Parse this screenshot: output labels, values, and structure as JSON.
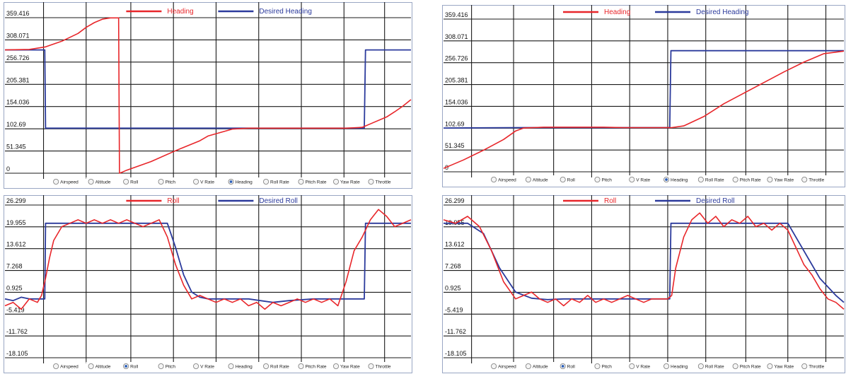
{
  "radio_options": [
    "Airspeed",
    "Altitude",
    "Roll",
    "Pitch",
    "V Rate",
    "Heading",
    "Roll Rate",
    "Pitch Rate",
    "Yaw Rate",
    "Throttle"
  ],
  "colors": {
    "actual": "#e8262a",
    "desired": "#2b3a9c",
    "grid": "#1a1a1a"
  },
  "chart_data": [
    {
      "type": "line",
      "legend_placement": "top-center",
      "grid": true,
      "selected_option": "Heading",
      "ylim": [
        0,
        359.416
      ],
      "yticks": [
        "359.416",
        "308.071",
        "256.726",
        "205.381",
        "154.036",
        "102.69",
        "51.345",
        "0"
      ],
      "xlim": [
        0,
        100
      ],
      "series": [
        {
          "name": "Heading",
          "x": [
            0,
            6,
            10,
            14,
            18,
            20,
            22,
            24,
            26,
            27,
            28,
            28.2,
            29,
            30,
            36,
            42,
            48,
            50,
            56,
            60,
            64,
            70,
            76,
            80,
            84,
            88,
            90,
            94,
            96,
            98,
            100
          ],
          "y": [
            285,
            286,
            292,
            305,
            323,
            337,
            348,
            356,
            359,
            359,
            359,
            0,
            3,
            7,
            27,
            52,
            75,
            86,
            102,
            104,
            104,
            104,
            104,
            104,
            104,
            106,
            114,
            130,
            142,
            155,
            170
          ]
        },
        {
          "name": "Desired Heading",
          "x": [
            0,
            9.8,
            10,
            88.5,
            88.8,
            100
          ],
          "y": [
            285,
            285,
            104,
            104,
            285,
            285
          ]
        }
      ]
    },
    {
      "type": "line",
      "legend_placement": "top-center",
      "grid": true,
      "selected_option": "Roll",
      "ylim": [
        -18.105,
        26.299
      ],
      "yticks": [
        "26.299",
        "19.955",
        "13.612",
        "7.268",
        "0.925",
        "-5.419",
        "-11.762",
        "-18.105"
      ],
      "xlim": [
        0,
        100
      ],
      "series": [
        {
          "name": "Roll",
          "x": [
            0,
            2,
            4,
            6,
            8,
            9,
            10,
            11,
            12,
            14,
            16,
            18,
            20,
            22,
            24,
            26,
            28,
            30,
            32,
            34,
            36,
            38,
            40,
            42,
            44,
            46,
            48,
            50,
            52,
            54,
            56,
            58,
            60,
            62,
            64,
            66,
            68,
            70,
            72,
            74,
            76,
            78,
            80,
            82,
            84,
            86,
            88,
            90,
            92,
            94,
            96,
            98,
            100
          ],
          "y": [
            -3,
            -2,
            -4,
            -1,
            -2,
            0,
            5,
            11,
            16,
            20,
            21,
            22,
            21,
            22,
            21,
            22,
            21,
            22,
            21,
            20,
            21,
            22,
            17,
            9,
            3,
            -1,
            0,
            -1,
            -2,
            -1,
            -2,
            -1,
            -3,
            -2,
            -4,
            -2,
            -3,
            -2,
            -1,
            -2,
            -1,
            -2,
            -1,
            -3,
            4,
            13,
            17,
            22,
            25,
            23,
            20,
            21,
            22
          ]
        },
        {
          "name": "Desired Roll",
          "x": [
            0,
            2,
            4,
            6,
            8,
            9.8,
            10,
            40,
            42,
            44,
            46,
            48,
            50,
            56,
            60,
            66,
            70,
            76,
            80,
            84,
            88.5,
            88.8,
            100
          ],
          "y": [
            -1,
            -1.5,
            -0.5,
            -1,
            -1,
            -1,
            21,
            21,
            14,
            6,
            1,
            -0.5,
            -1,
            -1,
            -1,
            -2,
            -1.5,
            -1,
            -1,
            -1,
            -1,
            21,
            21
          ]
        }
      ]
    },
    {
      "type": "line",
      "legend_placement": "top-center",
      "grid": true,
      "selected_option": "Heading",
      "ylim": [
        0,
        359.416
      ],
      "yticks": [
        "359.416",
        "308.071",
        "256.726",
        "205.381",
        "154.036",
        "102.69",
        "51.345",
        "0"
      ],
      "xlim": [
        0,
        100
      ],
      "series": [
        {
          "name": "Heading",
          "x": [
            0,
            5,
            10,
            15,
            18,
            20,
            25,
            30,
            35,
            40,
            45,
            50,
            55,
            57,
            60,
            65,
            70,
            75,
            80,
            85,
            90,
            95,
            100
          ],
          "y": [
            8,
            28,
            51,
            76,
            96,
            103,
            105,
            105,
            105,
            105,
            104,
            104,
            104,
            104,
            108,
            130,
            160,
            185,
            210,
            235,
            258,
            278,
            284
          ]
        },
        {
          "name": "Desired Heading",
          "x": [
            0,
            20,
            40,
            56.5,
            56.8,
            100
          ],
          "y": [
            103,
            104,
            104,
            104,
            285,
            285
          ]
        }
      ]
    },
    {
      "type": "line",
      "legend_placement": "top-center",
      "grid": true,
      "selected_option": "Roll",
      "ylim": [
        -18.105,
        26.299
      ],
      "yticks": [
        "26.299",
        "19.955",
        "13.612",
        "7.268",
        "0.925",
        "-5.419",
        "-11.762",
        "-18.105"
      ],
      "xlim": [
        0,
        100
      ],
      "series": [
        {
          "name": "Roll",
          "x": [
            0,
            3,
            6,
            9,
            12,
            15,
            18,
            20,
            22,
            24,
            26,
            28,
            30,
            32,
            34,
            36,
            38,
            40,
            42,
            44,
            46,
            48,
            50,
            52,
            54,
            56,
            57,
            58,
            60,
            62,
            64,
            66,
            68,
            70,
            72,
            74,
            76,
            78,
            80,
            82,
            84,
            86,
            88,
            90,
            92,
            94,
            96,
            98,
            100
          ],
          "y": [
            22,
            21,
            23,
            20,
            13,
            4,
            -1,
            0,
            1,
            -1,
            -2,
            -1,
            -3,
            -1,
            -2,
            0,
            -2,
            -1,
            -2,
            -1,
            0,
            -1,
            -2,
            -1,
            -1,
            -1,
            0,
            8,
            17,
            22,
            24,
            21,
            23,
            20,
            22,
            21,
            23,
            20,
            21,
            19,
            21,
            19,
            14,
            9,
            6,
            2,
            -1,
            -2,
            -4
          ]
        },
        {
          "name": "Desired Roll",
          "x": [
            0,
            6,
            10,
            14,
            18,
            22,
            26,
            30,
            40,
            50,
            56.5,
            56.8,
            86,
            90,
            94,
            98,
            100
          ],
          "y": [
            21,
            21,
            18,
            8,
            1,
            -0.8,
            -1.2,
            -1,
            -1,
            -1,
            -1,
            21,
            21,
            13,
            5,
            0,
            -2
          ]
        }
      ]
    }
  ]
}
